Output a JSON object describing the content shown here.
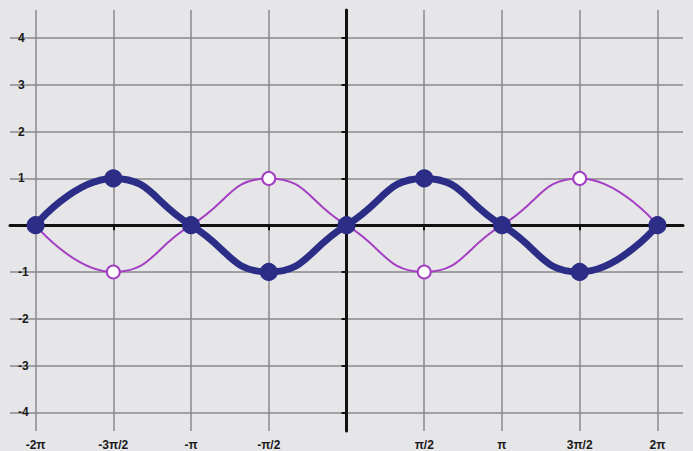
{
  "chart_data": {
    "type": "line",
    "x": [
      -6.2832,
      -4.7124,
      -3.1416,
      -1.5708,
      0,
      1.5708,
      3.1416,
      4.7124,
      6.2832
    ],
    "series": [
      {
        "color": "#2b2d86",
        "marker": "circle",
        "line_style": "thick",
        "values": [
          0,
          1,
          0,
          -1,
          0,
          1,
          0,
          -1,
          0
        ]
      },
      {
        "color": "#a43fc4",
        "marker": "open_circle",
        "line_style": "thin",
        "values": [
          0,
          -1,
          0,
          1,
          0,
          -1,
          0,
          1,
          0
        ]
      }
    ],
    "xlim": [
      -6.8,
      6.8
    ],
    "xticks": [
      {
        "value": -6.2832,
        "label": "-2π"
      },
      {
        "value": -4.7124,
        "label": "-3π/2"
      },
      {
        "value": -3.1416,
        "label": "-π"
      },
      {
        "value": -1.5708,
        "label": "-π/2"
      },
      {
        "value": 1.5708,
        "label": "π/2"
      },
      {
        "value": 3.1416,
        "label": "π"
      },
      {
        "value": 4.7124,
        "label": "3π/2"
      },
      {
        "value": 6.2832,
        "label": "2π"
      }
    ],
    "ylim": [
      -4.4,
      4.6
    ],
    "yticks": [
      -4,
      -3,
      -2,
      -1,
      1,
      2,
      3,
      4
    ],
    "grid": true
  }
}
